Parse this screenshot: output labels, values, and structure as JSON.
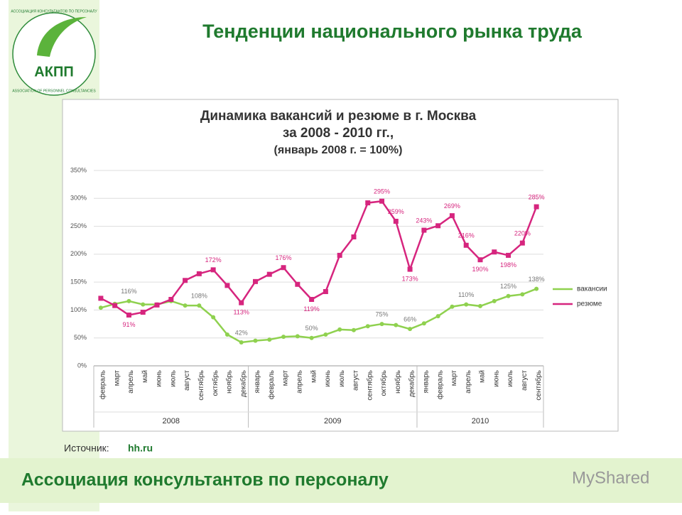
{
  "header": {
    "title": "Тенденции национального рынка труда",
    "logo": "АКПП",
    "logo_ring_top": "АССОЦИАЦИЯ КОНСУЛЬТАНТОВ ПО ПЕРСОНАЛУ",
    "logo_ring_bottom": "ASSOCIATION OF PERSONNEL CONSULTANCIES"
  },
  "source": {
    "label": "Источник:",
    "value": "hh.ru"
  },
  "footer": {
    "text": "Ассоциация консультантов по персоналу",
    "watermark": "MyShared"
  },
  "chart_data": {
    "type": "line",
    "title": [
      "Динамика вакансий и резюме в г. Москва",
      "за 2008 - 2010 гг.,",
      "(январь 2008 г. = 100%)"
    ],
    "categories": [
      "февраль",
      "март",
      "апрель",
      "май",
      "июнь",
      "июль",
      "август",
      "сентябрь",
      "октябрь",
      "ноябрь",
      "декабрь",
      "январь",
      "февраль",
      "март",
      "апрель",
      "май",
      "июнь",
      "июль",
      "август",
      "сентябрь",
      "октябрь",
      "ноябрь",
      "декабрь",
      "январь",
      "февраль",
      "март",
      "апрель",
      "май",
      "июнь",
      "июль",
      "август",
      "сентябрь"
    ],
    "groups": [
      "2008",
      "2009",
      "2010"
    ],
    "series": [
      {
        "name": "вакансии",
        "color": "#8fd14f",
        "values": [
          104,
          111,
          116,
          110,
          110,
          116,
          108,
          108,
          87,
          56,
          42,
          45,
          47,
          52,
          53,
          50,
          56,
          65,
          64,
          71,
          75,
          73,
          66,
          76,
          89,
          106,
          110,
          107,
          116,
          125,
          128,
          138
        ],
        "value_labels": [
          null,
          null,
          "116%",
          null,
          null,
          null,
          null,
          "108%",
          null,
          null,
          "42%",
          null,
          null,
          null,
          null,
          "50%",
          null,
          null,
          null,
          null,
          "75%",
          null,
          "66%",
          null,
          null,
          null,
          "110%",
          null,
          null,
          "125%",
          null,
          "138%"
        ]
      },
      {
        "name": "резюме",
        "color": "#d6257e",
        "values": [
          121,
          108,
          91,
          96,
          109,
          119,
          153,
          165,
          172,
          144,
          113,
          151,
          164,
          176,
          146,
          119,
          133,
          198,
          231,
          292,
          295,
          259,
          173,
          243,
          251,
          269,
          216,
          190,
          204,
          198,
          220,
          285
        ],
        "value_labels": [
          null,
          null,
          "91%",
          null,
          null,
          null,
          null,
          null,
          "172%",
          null,
          "113%",
          null,
          null,
          "176%",
          null,
          "119%",
          null,
          null,
          null,
          null,
          "295%",
          "259%",
          "173%",
          "243%",
          null,
          "269%",
          "216%",
          "190%",
          null,
          "198%",
          "220%",
          "285%"
        ]
      }
    ],
    "ylim": [
      0,
      350
    ],
    "yticks": [
      {
        "value": 0,
        "label": "0%"
      },
      {
        "value": 50,
        "label": "50%"
      },
      {
        "value": 100,
        "label": "100%"
      },
      {
        "value": 150,
        "label": "150%"
      },
      {
        "value": 200,
        "label": "200%"
      },
      {
        "value": 250,
        "label": "250%"
      },
      {
        "value": 300,
        "label": "300%"
      },
      {
        "value": 350,
        "label": "350%"
      }
    ],
    "grid": true,
    "legend": "right"
  }
}
